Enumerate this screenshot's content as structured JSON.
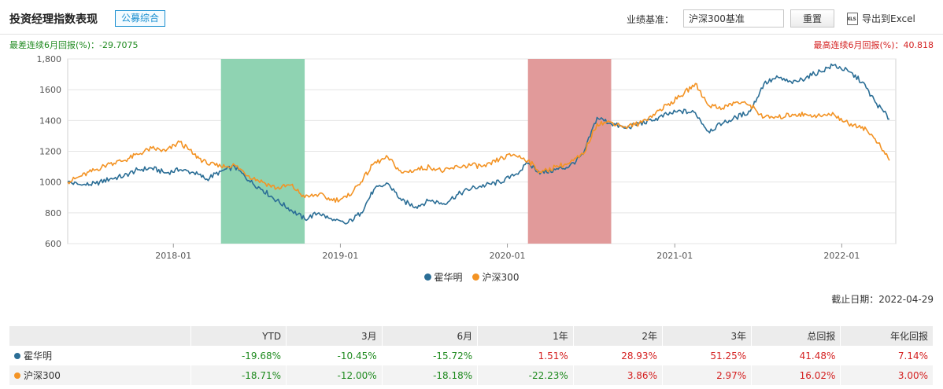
{
  "header": {
    "title": "投资经理指数表现",
    "tag": "公募综合",
    "benchmark_label": "业绩基准：",
    "benchmark_value": "沪深300基准",
    "reset_label": "重置",
    "export_label": "导出到Excel"
  },
  "stats": {
    "worst": "最差连续6月回报(%)：-29.7075",
    "best": "最高连续6月回报(%)：40.818"
  },
  "colors": {
    "series1": "#2b6e96",
    "series2": "#f39324",
    "worst_band": "#8fd3b2",
    "best_band": "#e19a9a"
  },
  "chart_data": {
    "type": "line",
    "x_ticks": [
      "2018-01",
      "2019-01",
      "2020-01",
      "2021-01",
      "2022-01"
    ],
    "ylim": [
      600,
      1800
    ],
    "y_ticks": [
      600,
      800,
      1000,
      1200,
      1400,
      1600,
      "1,800"
    ],
    "grid": true,
    "legend": "bottom",
    "bands": [
      {
        "label": "worst",
        "from": "2018-04",
        "to": "2018-10"
      },
      {
        "label": "best",
        "from": "2020-02",
        "to": "2020-08"
      }
    ],
    "series": [
      {
        "name": "霍华明",
        "points": [
          [
            "2017-05",
            1000
          ],
          [
            "2017-06",
            980
          ],
          [
            "2017-07",
            990
          ],
          [
            "2017-08",
            1020
          ],
          [
            "2017-09",
            1040
          ],
          [
            "2017-10",
            1080
          ],
          [
            "2017-11",
            1090
          ],
          [
            "2017-12",
            1060
          ],
          [
            "2018-01",
            1080
          ],
          [
            "2018-02",
            1060
          ],
          [
            "2018-03",
            1020
          ],
          [
            "2018-04",
            1070
          ],
          [
            "2018-05",
            1100
          ],
          [
            "2018-06",
            1010
          ],
          [
            "2018-07",
            950
          ],
          [
            "2018-08",
            880
          ],
          [
            "2018-09",
            820
          ],
          [
            "2018-10",
            760
          ],
          [
            "2018-11",
            800
          ],
          [
            "2018-12",
            750
          ],
          [
            "2019-01",
            730
          ],
          [
            "2019-02",
            800
          ],
          [
            "2019-03",
            950
          ],
          [
            "2019-04",
            990
          ],
          [
            "2019-05",
            880
          ],
          [
            "2019-06",
            840
          ],
          [
            "2019-07",
            880
          ],
          [
            "2019-08",
            860
          ],
          [
            "2019-09",
            920
          ],
          [
            "2019-10",
            960
          ],
          [
            "2019-11",
            980
          ],
          [
            "2019-12",
            1000
          ],
          [
            "2020-01",
            1040
          ],
          [
            "2020-02",
            1120
          ],
          [
            "2020-03",
            1060
          ],
          [
            "2020-04",
            1080
          ],
          [
            "2020-05",
            1100
          ],
          [
            "2020-06",
            1180
          ],
          [
            "2020-07",
            1420
          ],
          [
            "2020-08",
            1380
          ],
          [
            "2020-09",
            1350
          ],
          [
            "2020-10",
            1380
          ],
          [
            "2020-11",
            1400
          ],
          [
            "2020-12",
            1440
          ],
          [
            "2021-01",
            1460
          ],
          [
            "2021-02",
            1450
          ],
          [
            "2021-03",
            1330
          ],
          [
            "2021-04",
            1380
          ],
          [
            "2021-05",
            1420
          ],
          [
            "2021-06",
            1460
          ],
          [
            "2021-07",
            1640
          ],
          [
            "2021-08",
            1680
          ],
          [
            "2021-09",
            1640
          ],
          [
            "2021-10",
            1680
          ],
          [
            "2021-11",
            1720
          ],
          [
            "2021-12",
            1760
          ],
          [
            "2022-01",
            1720
          ],
          [
            "2022-02",
            1650
          ],
          [
            "2022-03",
            1520
          ],
          [
            "2022-04",
            1410
          ]
        ]
      },
      {
        "name": "沪深300",
        "points": [
          [
            "2017-05",
            1000
          ],
          [
            "2017-06",
            1040
          ],
          [
            "2017-07",
            1080
          ],
          [
            "2017-08",
            1120
          ],
          [
            "2017-09",
            1140
          ],
          [
            "2017-10",
            1180
          ],
          [
            "2017-11",
            1220
          ],
          [
            "2017-12",
            1200
          ],
          [
            "2018-01",
            1260
          ],
          [
            "2018-02",
            1180
          ],
          [
            "2018-03",
            1120
          ],
          [
            "2018-04",
            1100
          ],
          [
            "2018-05",
            1110
          ],
          [
            "2018-06",
            1040
          ],
          [
            "2018-07",
            1000
          ],
          [
            "2018-08",
            960
          ],
          [
            "2018-09",
            980
          ],
          [
            "2018-10",
            900
          ],
          [
            "2018-11",
            920
          ],
          [
            "2018-12",
            880
          ],
          [
            "2019-01",
            900
          ],
          [
            "2019-02",
            1000
          ],
          [
            "2019-03",
            1120
          ],
          [
            "2019-04",
            1160
          ],
          [
            "2019-05",
            1060
          ],
          [
            "2019-06",
            1080
          ],
          [
            "2019-07",
            1100
          ],
          [
            "2019-08",
            1070
          ],
          [
            "2019-09",
            1100
          ],
          [
            "2019-10",
            1110
          ],
          [
            "2019-11",
            1100
          ],
          [
            "2019-12",
            1150
          ],
          [
            "2020-01",
            1180
          ],
          [
            "2020-02",
            1140
          ],
          [
            "2020-03",
            1060
          ],
          [
            "2020-04",
            1100
          ],
          [
            "2020-05",
            1120
          ],
          [
            "2020-06",
            1180
          ],
          [
            "2020-07",
            1380
          ],
          [
            "2020-08",
            1390
          ],
          [
            "2020-09",
            1360
          ],
          [
            "2020-10",
            1380
          ],
          [
            "2020-11",
            1440
          ],
          [
            "2020-12",
            1500
          ],
          [
            "2021-01",
            1560
          ],
          [
            "2021-02",
            1640
          ],
          [
            "2021-03",
            1500
          ],
          [
            "2021-04",
            1480
          ],
          [
            "2021-05",
            1520
          ],
          [
            "2021-06",
            1500
          ],
          [
            "2021-07",
            1420
          ],
          [
            "2021-08",
            1420
          ],
          [
            "2021-09",
            1440
          ],
          [
            "2021-10",
            1440
          ],
          [
            "2021-11",
            1430
          ],
          [
            "2021-12",
            1440
          ],
          [
            "2022-01",
            1380
          ],
          [
            "2022-02",
            1360
          ],
          [
            "2022-03",
            1280
          ],
          [
            "2022-04",
            1140
          ]
        ]
      }
    ]
  },
  "as_of": "截止日期：2022-04-29",
  "table": {
    "columns": [
      "",
      "YTD",
      "3月",
      "6月",
      "1年",
      "2年",
      "3年",
      "总回报",
      "年化回报"
    ],
    "rows": [
      {
        "name": "霍华明",
        "values": [
          "-19.68%",
          "-10.45%",
          "-15.72%",
          "1.51%",
          "28.93%",
          "51.25%",
          "41.48%",
          "7.14%"
        ]
      },
      {
        "name": "沪深300",
        "values": [
          "-18.71%",
          "-12.00%",
          "-18.18%",
          "-22.23%",
          "3.86%",
          "2.97%",
          "16.02%",
          "3.00%"
        ]
      }
    ]
  }
}
